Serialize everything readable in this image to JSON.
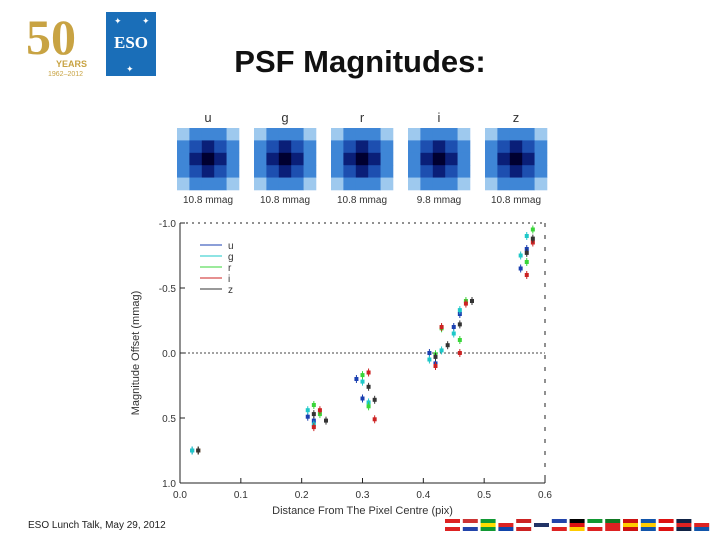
{
  "header": {
    "logo": {
      "anniversary_number": "50",
      "years_label": "YEARS",
      "years_range": "1962–2012",
      "org_text": "ESO"
    },
    "title": "PSF Magnitudes:"
  },
  "footer": {
    "text": "ESO Lunch Talk,  May 29, 2012",
    "flag_icons": [
      "austria-flag-icon",
      "netherlands-flag-icon",
      "brazil-flag-icon",
      "czech-flag-icon",
      "denmark-flag-icon",
      "finland-flag-icon",
      "france-flag-icon",
      "germany-flag-icon",
      "italy-flag-icon",
      "portugal-flag-icon",
      "spain-flag-icon",
      "sweden-flag-icon",
      "switzerland-flag-icon",
      "uk-flag-icon",
      "chile-flag-icon"
    ]
  },
  "psf_panels": [
    {
      "band": "u",
      "caption": "10.8 mmag"
    },
    {
      "band": "g",
      "caption": "10.8 mmag"
    },
    {
      "band": "r",
      "caption": "10.8 mmag"
    },
    {
      "band": "i",
      "caption": "9.8 mmag"
    },
    {
      "band": "z",
      "caption": "10.8 mmag"
    }
  ],
  "chart_data": {
    "type": "scatter",
    "xlabel": "Distance From The Pixel Centre (pix)",
    "ylabel": "Magnitude Offset (mmag)",
    "xlim": [
      0.0,
      0.6
    ],
    "ylim": [
      -1.0,
      1.0
    ],
    "y_inverted": true,
    "xticks": [
      "0.0",
      "0.1",
      "0.2",
      "0.3",
      "0.4",
      "0.5",
      "0.6"
    ],
    "yticks": [
      "-1.0",
      "-0.5",
      "0.0",
      "0.5",
      "1.0"
    ],
    "reference_line_y": 0.0,
    "grid": false,
    "legend_position": "top-left",
    "series": [
      {
        "name": "u",
        "color": "#1a3fb0",
        "x": [
          0.02,
          0.21,
          0.22,
          0.29,
          0.3,
          0.41,
          0.42,
          0.45,
          0.46,
          0.56,
          0.57
        ],
        "y": [
          0.75,
          0.49,
          0.52,
          0.2,
          0.35,
          0.0,
          0.08,
          -0.2,
          -0.3,
          -0.65,
          -0.8
        ]
      },
      {
        "name": "g",
        "color": "#1ec8c8",
        "x": [
          0.02,
          0.21,
          0.22,
          0.3,
          0.31,
          0.41,
          0.43,
          0.45,
          0.46,
          0.56,
          0.57
        ],
        "y": [
          0.75,
          0.44,
          0.55,
          0.22,
          0.38,
          0.05,
          -0.02,
          -0.15,
          -0.33,
          -0.75,
          -0.9
        ]
      },
      {
        "name": "r",
        "color": "#39d639",
        "x": [
          0.03,
          0.22,
          0.23,
          0.3,
          0.31,
          0.42,
          0.43,
          0.46,
          0.47,
          0.57,
          0.58
        ],
        "y": [
          0.75,
          0.4,
          0.47,
          0.17,
          0.41,
          0.01,
          -0.19,
          -0.1,
          -0.4,
          -0.7,
          -0.95
        ]
      },
      {
        "name": "i",
        "color": "#cc2222",
        "x": [
          0.03,
          0.22,
          0.23,
          0.31,
          0.32,
          0.42,
          0.43,
          0.46,
          0.47,
          0.57,
          0.58
        ],
        "y": [
          0.75,
          0.57,
          0.44,
          0.15,
          0.51,
          0.1,
          -0.2,
          0.0,
          -0.38,
          -0.6,
          -0.85
        ]
      },
      {
        "name": "z",
        "color": "#333333",
        "x": [
          0.03,
          0.22,
          0.24,
          0.31,
          0.32,
          0.42,
          0.44,
          0.46,
          0.48,
          0.57,
          0.58
        ],
        "y": [
          0.75,
          0.47,
          0.52,
          0.26,
          0.36,
          0.03,
          -0.06,
          -0.22,
          -0.4,
          -0.77,
          -0.88
        ]
      }
    ]
  }
}
